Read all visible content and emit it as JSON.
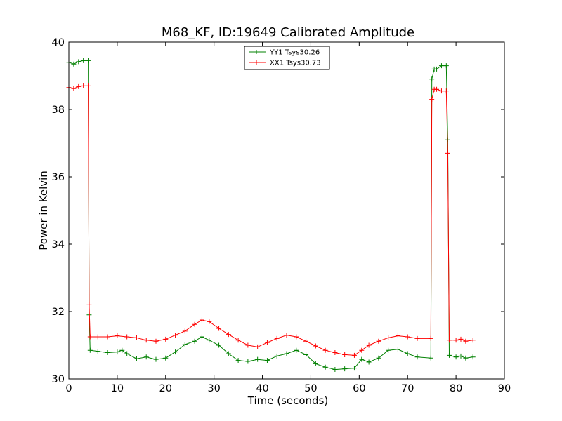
{
  "chart_data": {
    "type": "line",
    "title": "M68_KF, ID:19649 Calibrated Amplitude",
    "xlabel": "Time (seconds)",
    "ylabel": "Power in Kelvin",
    "xlim": [
      0,
      90
    ],
    "ylim": [
      30,
      40
    ],
    "xticks": [
      0,
      10,
      20,
      30,
      40,
      50,
      60,
      70,
      80,
      90
    ],
    "yticks": [
      30,
      32,
      34,
      36,
      38,
      40
    ],
    "grid": false,
    "legend_position": "top-center",
    "marker": "+",
    "series": [
      {
        "name": "YY1 Tsys30.26",
        "color": "#008000",
        "x": [
          0,
          1,
          2,
          3,
          4,
          4.2,
          4.4,
          6,
          8,
          10,
          11,
          12,
          14,
          16,
          18,
          20,
          22,
          24,
          26,
          27.5,
          29,
          31,
          33,
          35,
          37,
          39,
          41,
          43,
          45,
          47,
          49,
          51,
          53,
          55,
          57,
          59,
          60.5,
          62,
          64,
          66,
          68,
          70,
          72,
          74.8,
          75,
          75.5,
          76,
          77,
          78,
          78.3,
          78.6,
          80,
          81,
          82,
          83.5
        ],
        "values": [
          39.4,
          39.35,
          39.42,
          39.45,
          39.45,
          31.9,
          30.85,
          30.82,
          30.78,
          30.8,
          30.85,
          30.75,
          30.6,
          30.65,
          30.58,
          30.62,
          30.8,
          31.02,
          31.12,
          31.25,
          31.15,
          31.0,
          30.75,
          30.55,
          30.52,
          30.58,
          30.55,
          30.68,
          30.75,
          30.85,
          30.72,
          30.45,
          30.35,
          30.28,
          30.3,
          30.32,
          30.58,
          30.5,
          30.62,
          30.85,
          30.88,
          30.75,
          30.65,
          30.62,
          38.9,
          39.2,
          39.2,
          39.3,
          39.3,
          37.1,
          30.7,
          30.65,
          30.68,
          30.62,
          30.65
        ]
      },
      {
        "name": "XX1 Tsys30.73",
        "color": "#ff0000",
        "x": [
          0,
          1,
          2,
          3,
          4,
          4.2,
          4.4,
          6,
          8,
          10,
          12,
          14,
          16,
          18,
          20,
          22,
          24,
          26,
          27.5,
          29,
          31,
          33,
          35,
          37,
          39,
          41,
          43,
          45,
          47,
          49,
          51,
          53,
          55,
          57,
          59,
          60.5,
          62,
          64,
          66,
          68,
          70,
          72,
          74.8,
          75,
          75.5,
          76,
          77,
          78,
          78.3,
          78.6,
          80,
          81,
          82,
          83.5
        ],
        "values": [
          38.65,
          38.62,
          38.68,
          38.7,
          38.7,
          32.2,
          31.25,
          31.25,
          31.25,
          31.28,
          31.25,
          31.22,
          31.15,
          31.12,
          31.18,
          31.3,
          31.42,
          31.62,
          31.75,
          31.7,
          31.5,
          31.32,
          31.15,
          31.0,
          30.95,
          31.08,
          31.2,
          31.3,
          31.25,
          31.12,
          30.98,
          30.85,
          30.78,
          30.72,
          30.7,
          30.85,
          31.0,
          31.12,
          31.22,
          31.28,
          31.25,
          31.2,
          31.2,
          38.3,
          38.6,
          38.6,
          38.55,
          38.55,
          36.7,
          31.15,
          31.15,
          31.18,
          31.12,
          31.15
        ]
      }
    ]
  }
}
